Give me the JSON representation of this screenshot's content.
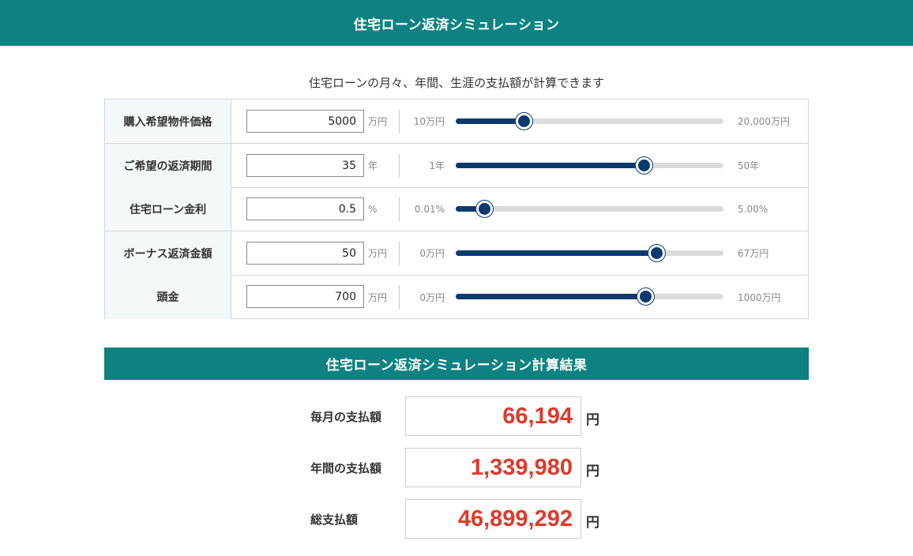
{
  "header": {
    "title": "住宅ローン返済シミュレーション"
  },
  "subtitle": "住宅ローンの月々、年間、生涯の支払額が計算できます",
  "inputs": [
    {
      "label": "購入希望物件価格",
      "value": "5000",
      "unit": "万円",
      "min_label": "10万円",
      "max_label": "20,000万円",
      "slider_fraction": 0.255
    },
    {
      "label": "ご希望の返済期間",
      "value": "35",
      "unit": "年",
      "min_label": "1年",
      "max_label": "50年",
      "slider_fraction": 0.705
    },
    {
      "label": "住宅ローン金利",
      "value": "0.5",
      "unit": "%",
      "min_label": "0.01%",
      "max_label": "5.00%",
      "slider_fraction": 0.108
    },
    {
      "label": "ボーナス返済金額",
      "value": "50",
      "unit": "万円",
      "min_label": "0万円",
      "max_label": "67万円",
      "slider_fraction": 0.75
    },
    {
      "label": "頭金",
      "value": "700",
      "unit": "万円",
      "min_label": "0万円",
      "max_label": "1000万円",
      "slider_fraction": 0.71
    }
  ],
  "results": {
    "title": "住宅ローン返済シミュレーション計算結果",
    "items": [
      {
        "label": "毎月の支払額",
        "value": "66,194",
        "unit": "円"
      },
      {
        "label": "年間の支払額",
        "value": "1,339,980",
        "unit": "円"
      },
      {
        "label": "総支払額",
        "value": "46,899,292",
        "unit": "円"
      }
    ]
  },
  "colors": {
    "brand_teal": "#0d8281",
    "slider_navy": "#0b3a6e",
    "result_red": "#e0392b",
    "label_bg": "#f3f8f8"
  }
}
